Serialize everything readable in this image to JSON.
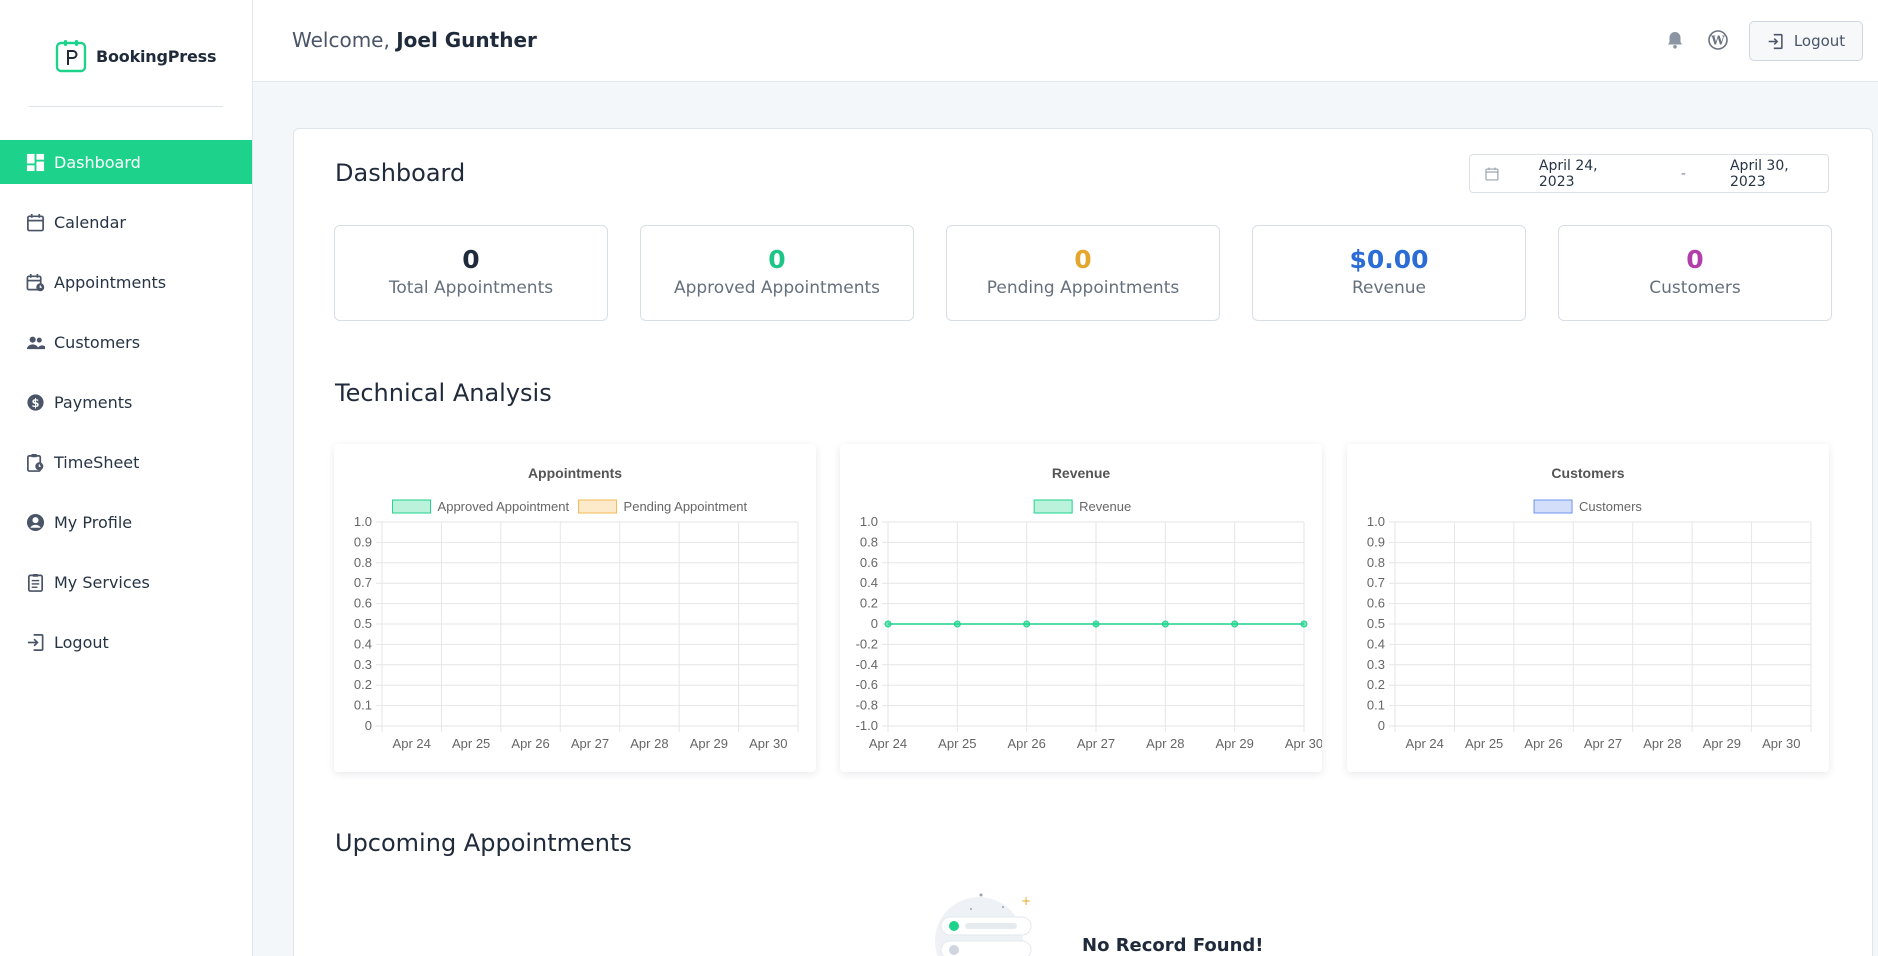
{
  "app": {
    "logo_text": "BookingPress",
    "brand_color": "#1dd38c"
  },
  "sidebar": {
    "items": [
      {
        "label": "Dashboard",
        "icon": "dashboard-icon",
        "active": true
      },
      {
        "label": "Calendar",
        "icon": "calendar-icon"
      },
      {
        "label": "Appointments",
        "icon": "appointments-icon"
      },
      {
        "label": "Customers",
        "icon": "customers-icon"
      },
      {
        "label": "Payments",
        "icon": "dollar-icon"
      },
      {
        "label": "TimeSheet",
        "icon": "timesheet-icon"
      },
      {
        "label": "My Profile",
        "icon": "profile-icon"
      },
      {
        "label": "My Services",
        "icon": "services-icon"
      },
      {
        "label": "Logout",
        "icon": "logout-icon"
      }
    ]
  },
  "header": {
    "welcome_prefix": "Welcome,",
    "user_name": "Joel Gunther",
    "logout_label": "Logout",
    "icons": [
      "bell-icon",
      "wordpress-icon"
    ]
  },
  "dashboard": {
    "title": "Dashboard",
    "date_from": "April 24, 2023",
    "date_sep": "-",
    "date_to": "April 30, 2023",
    "stats": [
      {
        "value": "0",
        "label": "Total Appointments",
        "color": "#1f2a3a"
      },
      {
        "value": "0",
        "label": "Approved Appointments",
        "color": "#1dc687"
      },
      {
        "value": "0",
        "label": "Pending Appointments",
        "color": "#e5a62d"
      },
      {
        "value": "$0.00",
        "label": "Revenue",
        "color": "#2b6dd4"
      },
      {
        "value": "0",
        "label": "Customers",
        "color": "#b23fa9"
      }
    ],
    "technical_analysis_title": "Technical Analysis",
    "upcoming_title": "Upcoming Appointments",
    "empty_text": "No Record Found!"
  },
  "chart_data": [
    {
      "type": "bar",
      "title": "Appointments",
      "categories": [
        "Apr 24",
        "Apr 25",
        "Apr 26",
        "Apr 27",
        "Apr 28",
        "Apr 29",
        "Apr 30"
      ],
      "series": [
        {
          "name": "Approved Appointment",
          "values": [
            0,
            0,
            0,
            0,
            0,
            0,
            0
          ],
          "color": "#1dd38c"
        },
        {
          "name": "Pending Appointment",
          "values": [
            0,
            0,
            0,
            0,
            0,
            0,
            0
          ],
          "color": "#f6b954"
        }
      ],
      "ylim": [
        0,
        1.0
      ],
      "yticks": [
        "1.0",
        "0.9",
        "0.8",
        "0.7",
        "0.6",
        "0.5",
        "0.4",
        "0.3",
        "0.2",
        "0.1",
        "0"
      ],
      "grid": true,
      "legend": "top"
    },
    {
      "type": "line",
      "title": "Revenue",
      "categories": [
        "Apr 24",
        "Apr 25",
        "Apr 26",
        "Apr 27",
        "Apr 28",
        "Apr 29",
        "Apr 30"
      ],
      "series": [
        {
          "name": "Revenue",
          "values": [
            0,
            0,
            0,
            0,
            0,
            0,
            0
          ],
          "color": "#1dd38c"
        }
      ],
      "ylim": [
        -1.0,
        1.0
      ],
      "yticks": [
        "1.0",
        "0.8",
        "0.6",
        "0.4",
        "0.2",
        "0",
        "-0.2",
        "-0.4",
        "-0.6",
        "-0.8",
        "-1.0"
      ],
      "grid": true,
      "legend": "top"
    },
    {
      "type": "bar",
      "title": "Customers",
      "categories": [
        "Apr 24",
        "Apr 25",
        "Apr 26",
        "Apr 27",
        "Apr 28",
        "Apr 29",
        "Apr 30"
      ],
      "series": [
        {
          "name": "Customers",
          "values": [
            0,
            0,
            0,
            0,
            0,
            0,
            0
          ],
          "color": "#6d95f0"
        }
      ],
      "ylim": [
        0,
        1.0
      ],
      "yticks": [
        "1.0",
        "0.9",
        "0.8",
        "0.7",
        "0.6",
        "0.5",
        "0.4",
        "0.3",
        "0.2",
        "0.1",
        "0"
      ],
      "grid": true,
      "legend": "top"
    }
  ]
}
